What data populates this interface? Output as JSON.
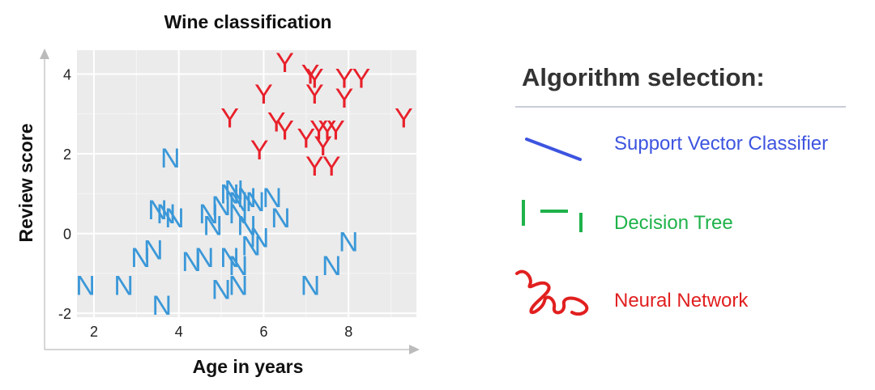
{
  "colors": {
    "class_y": "#e8202a",
    "class_n": "#3b98d8",
    "svc": "#3d54e0",
    "tree": "#1fb24a",
    "nn": "#e11f1f"
  },
  "chart_data": {
    "type": "scatter",
    "title": "Wine classification",
    "xlabel": "Age in years",
    "ylabel": "Review score",
    "xlim": [
      1.6,
      9.6
    ],
    "ylim": [
      -2.1,
      4.6
    ],
    "xticks": [
      2,
      4,
      6,
      8
    ],
    "yticks": [
      -2,
      0,
      2,
      4
    ],
    "x_tick_labels": [
      "2",
      "4",
      "6",
      "8"
    ],
    "y_tick_labels": [
      "-2",
      "0",
      "2",
      "4"
    ],
    "grid": true,
    "series": [
      {
        "marker": "Y",
        "points": [
          {
            "x": 6.5,
            "y": 4.3
          },
          {
            "x": 7.1,
            "y": 4.0
          },
          {
            "x": 7.2,
            "y": 3.9
          },
          {
            "x": 7.9,
            "y": 3.9
          },
          {
            "x": 8.3,
            "y": 3.9
          },
          {
            "x": 6.0,
            "y": 3.5
          },
          {
            "x": 7.2,
            "y": 3.5
          },
          {
            "x": 7.9,
            "y": 3.4
          },
          {
            "x": 5.2,
            "y": 2.9
          },
          {
            "x": 6.3,
            "y": 2.8
          },
          {
            "x": 6.5,
            "y": 2.6
          },
          {
            "x": 7.0,
            "y": 2.4
          },
          {
            "x": 7.3,
            "y": 2.6
          },
          {
            "x": 7.5,
            "y": 2.6
          },
          {
            "x": 7.7,
            "y": 2.6
          },
          {
            "x": 9.3,
            "y": 2.9
          },
          {
            "x": 5.9,
            "y": 2.1
          },
          {
            "x": 7.4,
            "y": 2.2
          },
          {
            "x": 7.2,
            "y": 1.7
          },
          {
            "x": 7.6,
            "y": 1.7
          }
        ]
      },
      {
        "marker": "N",
        "points": [
          {
            "x": 3.8,
            "y": 1.9
          },
          {
            "x": 5.3,
            "y": 1.1
          },
          {
            "x": 5.2,
            "y": 1.0
          },
          {
            "x": 5.6,
            "y": 0.9
          },
          {
            "x": 5.4,
            "y": 0.8
          },
          {
            "x": 6.2,
            "y": 0.9
          },
          {
            "x": 5.0,
            "y": 0.7
          },
          {
            "x": 5.8,
            "y": 0.8
          },
          {
            "x": 3.5,
            "y": 0.6
          },
          {
            "x": 3.9,
            "y": 0.4
          },
          {
            "x": 3.7,
            "y": 0.5
          },
          {
            "x": 4.7,
            "y": 0.5
          },
          {
            "x": 5.4,
            "y": 0.5
          },
          {
            "x": 6.4,
            "y": 0.4
          },
          {
            "x": 4.8,
            "y": 0.2
          },
          {
            "x": 5.6,
            "y": 0.2
          },
          {
            "x": 5.9,
            "y": -0.1
          },
          {
            "x": 5.7,
            "y": -0.3
          },
          {
            "x": 8.0,
            "y": -0.2
          },
          {
            "x": 3.1,
            "y": -0.6
          },
          {
            "x": 3.4,
            "y": -0.4
          },
          {
            "x": 4.3,
            "y": -0.7
          },
          {
            "x": 4.6,
            "y": -0.6
          },
          {
            "x": 5.2,
            "y": -0.6
          },
          {
            "x": 5.4,
            "y": -0.8
          },
          {
            "x": 7.6,
            "y": -0.8
          },
          {
            "x": 1.8,
            "y": -1.3
          },
          {
            "x": 2.7,
            "y": -1.3
          },
          {
            "x": 5.0,
            "y": -1.4
          },
          {
            "x": 5.4,
            "y": -1.3
          },
          {
            "x": 7.1,
            "y": -1.3
          },
          {
            "x": 3.6,
            "y": -1.8
          }
        ]
      }
    ]
  },
  "legend": {
    "heading": "Algorithm selection:",
    "items": [
      {
        "label": "Support Vector Classifier",
        "icon": "diagonal-line-icon",
        "color": "#3d54e0"
      },
      {
        "label": "Decision Tree",
        "icon": "dashed-step-icon",
        "color": "#1fb24a"
      },
      {
        "label": "Neural Network",
        "icon": "squiggle-icon",
        "color": "#e11f1f"
      }
    ]
  }
}
